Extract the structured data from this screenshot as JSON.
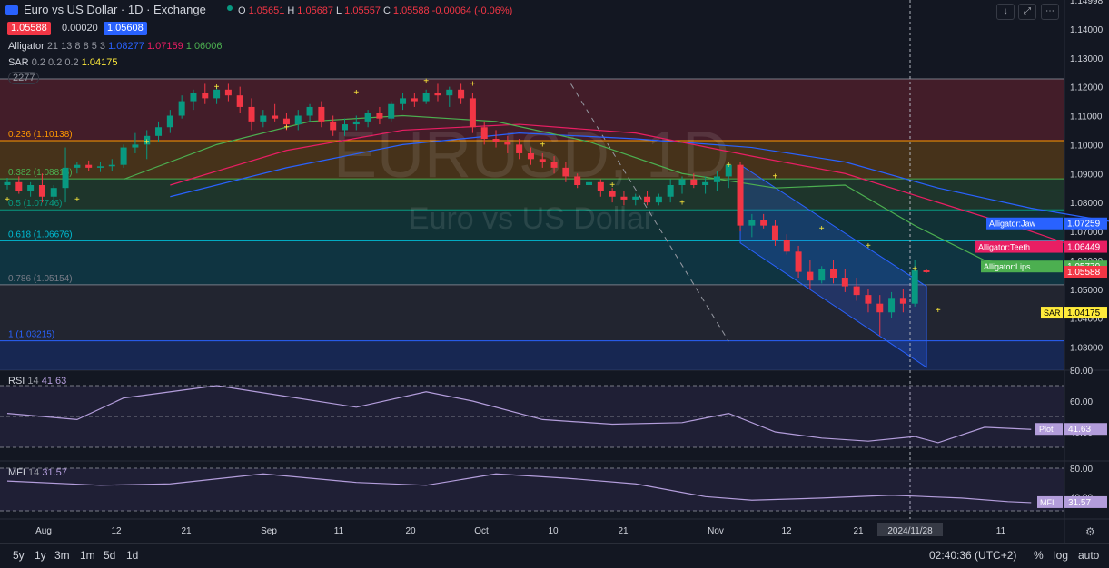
{
  "header": {
    "title": "Euro vs US Dollar · 1D · Exchange",
    "ohlc": {
      "o_label": "O",
      "o": "1.05651",
      "h_label": "H",
      "h": "1.05687",
      "l_label": "L",
      "l": "1.05557",
      "c_label": "C",
      "c": "1.05588",
      "change": "-0.00064 (-0.06%)"
    },
    "sell_price": "1.05588",
    "spread": "0.00020",
    "buy_price": "1.05608"
  },
  "indicators": {
    "alligator": {
      "name": "Alligator",
      "params": "21 13 8 8 5 3",
      "jaw": "1.08277",
      "teeth": "1.07159",
      "lips": "1.06006"
    },
    "sar": {
      "name": "SAR",
      "params": "0.2 0.2 0.2",
      "value": "1.04175"
    },
    "collapsed": "2277"
  },
  "watermark": {
    "symbol": "EURUSD, 1D",
    "name": "Euro vs US Dollar"
  },
  "colors": {
    "up": "#089981",
    "down": "#f23645",
    "jaw": "#2962ff",
    "teeth": "#e91e63",
    "lips": "#4caf50",
    "sar": "#ffeb3b",
    "rsi": "#b39ddb",
    "mfi": "#b39ddb",
    "bg": "#131722"
  },
  "price_axis": {
    "labels": [
      "1.14998",
      "1.14000",
      "1.13000",
      "1.12000",
      "1.11000",
      "1.10000",
      "1.09000",
      "1.08000",
      "1.07000",
      "1.06000",
      "1.05000",
      "1.04000",
      "1.03000"
    ]
  },
  "fib_levels": [
    {
      "label": "0.236 (1.10138)",
      "price": 1.10138
    },
    {
      "label": "0.382 (1.08815)",
      "price": 1.08815
    },
    {
      "label": "0.5 (1.07746)",
      "price": 1.07746
    },
    {
      "label": "0.618 (1.06676)",
      "price": 1.06676
    },
    {
      "label": "0.786 (1.05154)",
      "price": 1.05154
    },
    {
      "label": "1 (1.03215)",
      "price": 1.03215
    }
  ],
  "fib_top": 1.1227,
  "price_labels": [
    {
      "text": "Alligator:Jaw",
      "value": "1.07259",
      "color": "#2962ff"
    },
    {
      "text": "Alligator:Teeth",
      "value": "1.06449",
      "color": "#e91e63"
    },
    {
      "text": "Alligator:Lips",
      "value": "1.05770",
      "color": "#4caf50"
    },
    {
      "text": "",
      "value": "1.05588",
      "color": "#f23645"
    },
    {
      "text": "SAR",
      "value": "1.04175",
      "color": "#ffeb3b"
    }
  ],
  "rsi": {
    "name": "RSI",
    "period": "14",
    "value": "41.63",
    "axis": [
      "80.00",
      "60.00",
      "40.00"
    ],
    "plot_label": "Plot",
    "plot_value": "41.63"
  },
  "mfi": {
    "name": "MFI",
    "period": "14",
    "value": "31.57",
    "axis": [
      "80.00",
      "40.00"
    ],
    "plot_label": "MFI",
    "plot_value": "31.57"
  },
  "time_axis": [
    "Aug",
    "12",
    "21",
    "Sep",
    "11",
    "20",
    "Oct",
    "10",
    "21",
    "Nov",
    "12",
    "21",
    "2024/11/28",
    "11"
  ],
  "bottom_bar": {
    "timeframes": [
      "5y",
      "1y",
      "3m",
      "1m",
      "5d",
      "1d"
    ],
    "clock": "02:40:36 (UTC+2)",
    "percent": "%",
    "log": "log",
    "auto": "auto"
  },
  "chart_data": {
    "type": "candlestick",
    "title": "Euro vs US Dollar · 1D",
    "ylim": [
      1.022,
      1.15
    ],
    "candles": [
      [
        1.086,
        1.0885,
        1.0845,
        1.087
      ],
      [
        1.087,
        1.089,
        1.083,
        1.084
      ],
      [
        1.084,
        1.087,
        1.082,
        1.086
      ],
      [
        1.086,
        1.09,
        1.08,
        1.082
      ],
      [
        1.082,
        1.086,
        1.079,
        1.085
      ],
      [
        1.085,
        1.099,
        1.08,
        1.092
      ],
      [
        1.092,
        1.094,
        1.09,
        1.093
      ],
      [
        1.093,
        1.0945,
        1.091,
        1.092
      ],
      [
        1.092,
        1.094,
        1.0905,
        1.0925
      ],
      [
        1.0925,
        1.095,
        1.091,
        1.093
      ],
      [
        1.093,
        1.1,
        1.092,
        1.099
      ],
      [
        1.099,
        1.104,
        1.097,
        1.1
      ],
      [
        1.1,
        1.105,
        1.095,
        1.103
      ],
      [
        1.103,
        1.108,
        1.101,
        1.106
      ],
      [
        1.106,
        1.112,
        1.104,
        1.11
      ],
      [
        1.11,
        1.117,
        1.109,
        1.115
      ],
      [
        1.115,
        1.119,
        1.112,
        1.118
      ],
      [
        1.118,
        1.121,
        1.114,
        1.116
      ],
      [
        1.116,
        1.1202,
        1.114,
        1.119
      ],
      [
        1.119,
        1.121,
        1.115,
        1.117
      ],
      [
        1.117,
        1.12,
        1.111,
        1.113
      ],
      [
        1.113,
        1.116,
        1.105,
        1.108
      ],
      [
        1.108,
        1.112,
        1.106,
        1.11
      ],
      [
        1.11,
        1.114,
        1.108,
        1.109
      ],
      [
        1.109,
        1.111,
        1.105,
        1.107
      ],
      [
        1.107,
        1.112,
        1.105,
        1.11
      ],
      [
        1.11,
        1.114,
        1.108,
        1.113
      ],
      [
        1.113,
        1.115,
        1.106,
        1.108
      ],
      [
        1.108,
        1.11,
        1.103,
        1.105
      ],
      [
        1.105,
        1.109,
        1.103,
        1.107
      ],
      [
        1.107,
        1.11,
        1.105,
        1.108
      ],
      [
        1.108,
        1.112,
        1.106,
        1.111
      ],
      [
        1.111,
        1.113,
        1.107,
        1.109
      ],
      [
        1.109,
        1.115,
        1.108,
        1.114
      ],
      [
        1.114,
        1.118,
        1.112,
        1.116
      ],
      [
        1.116,
        1.118,
        1.113,
        1.115
      ],
      [
        1.115,
        1.119,
        1.114,
        1.118
      ],
      [
        1.118,
        1.121,
        1.115,
        1.117
      ],
      [
        1.117,
        1.12,
        1.113,
        1.119
      ],
      [
        1.119,
        1.121,
        1.114,
        1.116
      ],
      [
        1.116,
        1.118,
        1.104,
        1.106
      ],
      [
        1.106,
        1.108,
        1.1,
        1.102
      ],
      [
        1.102,
        1.105,
        1.099,
        1.101
      ],
      [
        1.101,
        1.103,
        1.097,
        1.1
      ],
      [
        1.1,
        1.102,
        1.095,
        1.097
      ],
      [
        1.097,
        1.099,
        1.093,
        1.095
      ],
      [
        1.095,
        1.097,
        1.092,
        1.094
      ],
      [
        1.094,
        1.096,
        1.09,
        1.092
      ],
      [
        1.092,
        1.094,
        1.087,
        1.089
      ],
      [
        1.089,
        1.09,
        1.085,
        1.086
      ],
      [
        1.086,
        1.089,
        1.084,
        1.087
      ],
      [
        1.087,
        1.088,
        1.082,
        1.084
      ],
      [
        1.084,
        1.085,
        1.08,
        1.082
      ],
      [
        1.082,
        1.084,
        1.079,
        1.081
      ],
      [
        1.081,
        1.083,
        1.079,
        1.082
      ],
      [
        1.082,
        1.084,
        1.079,
        1.08
      ],
      [
        1.08,
        1.083,
        1.079,
        1.082
      ],
      [
        1.082,
        1.088,
        1.08,
        1.086
      ],
      [
        1.086,
        1.089,
        1.083,
        1.088
      ],
      [
        1.088,
        1.09,
        1.085,
        1.086
      ],
      [
        1.086,
        1.089,
        1.083,
        1.087
      ],
      [
        1.087,
        1.091,
        1.084,
        1.089
      ],
      [
        1.089,
        1.094,
        1.085,
        1.093
      ],
      [
        1.093,
        1.094,
        1.07,
        1.072
      ],
      [
        1.072,
        1.076,
        1.068,
        1.074
      ],
      [
        1.074,
        1.076,
        1.071,
        1.072
      ],
      [
        1.072,
        1.074,
        1.065,
        1.067
      ],
      [
        1.067,
        1.069,
        1.062,
        1.063
      ],
      [
        1.063,
        1.065,
        1.054,
        1.056
      ],
      [
        1.056,
        1.06,
        1.05,
        1.053
      ],
      [
        1.053,
        1.058,
        1.052,
        1.057
      ],
      [
        1.057,
        1.06,
        1.052,
        1.054
      ],
      [
        1.054,
        1.057,
        1.049,
        1.051
      ],
      [
        1.051,
        1.054,
        1.046,
        1.048
      ],
      [
        1.048,
        1.05,
        1.042,
        1.045
      ],
      [
        1.045,
        1.048,
        1.034,
        1.042
      ],
      [
        1.042,
        1.049,
        1.04,
        1.047
      ],
      [
        1.047,
        1.05,
        1.042,
        1.045
      ],
      [
        1.045,
        1.06,
        1.044,
        1.0565
      ],
      [
        1.0565,
        1.0569,
        1.0556,
        1.0559
      ]
    ],
    "alligator_jaw": [
      [
        14,
        1.082
      ],
      [
        24,
        1.092
      ],
      [
        34,
        1.1
      ],
      [
        44,
        1.104
      ],
      [
        54,
        1.102
      ],
      [
        64,
        1.099
      ],
      [
        72,
        1.094
      ],
      [
        80,
        1.085
      ],
      [
        88,
        1.078
      ],
      [
        96,
        1.0726
      ]
    ],
    "alligator_teeth": [
      [
        14,
        1.086
      ],
      [
        24,
        1.098
      ],
      [
        34,
        1.105
      ],
      [
        44,
        1.107
      ],
      [
        54,
        1.104
      ],
      [
        64,
        1.096
      ],
      [
        72,
        1.09
      ],
      [
        80,
        1.08
      ],
      [
        88,
        1.07
      ],
      [
        92,
        1.0645
      ]
    ],
    "alligator_lips": [
      [
        10,
        1.088
      ],
      [
        18,
        1.1
      ],
      [
        26,
        1.108
      ],
      [
        34,
        1.11
      ],
      [
        42,
        1.108
      ],
      [
        50,
        1.101
      ],
      [
        58,
        1.09
      ],
      [
        66,
        1.085
      ],
      [
        72,
        1.086
      ],
      [
        78,
        1.072
      ],
      [
        84,
        1.06
      ],
      [
        88,
        1.0577
      ]
    ],
    "sar": [
      [
        0,
        1.08
      ],
      [
        6,
        1.08
      ],
      [
        12,
        1.1
      ],
      [
        18,
        1.119
      ],
      [
        24,
        1.105
      ],
      [
        30,
        1.117
      ],
      [
        36,
        1.121
      ],
      [
        40,
        1.12
      ],
      [
        46,
        1.099
      ],
      [
        52,
        1.085
      ],
      [
        58,
        1.079
      ],
      [
        62,
        1.092
      ],
      [
        66,
        1.088
      ],
      [
        70,
        1.07
      ],
      [
        74,
        1.064
      ],
      [
        78,
        1.056
      ],
      [
        80,
        1.0418
      ]
    ],
    "rsi": [
      [
        0,
        52
      ],
      [
        6,
        48
      ],
      [
        10,
        62
      ],
      [
        18,
        70
      ],
      [
        24,
        63
      ],
      [
        30,
        56
      ],
      [
        36,
        66
      ],
      [
        40,
        60
      ],
      [
        46,
        48
      ],
      [
        52,
        45
      ],
      [
        58,
        46
      ],
      [
        62,
        52
      ],
      [
        66,
        40
      ],
      [
        70,
        36
      ],
      [
        74,
        34
      ],
      [
        78,
        37
      ],
      [
        80,
        33
      ],
      [
        84,
        43
      ],
      [
        88,
        41.63
      ]
    ],
    "mfi": [
      [
        0,
        62
      ],
      [
        8,
        56
      ],
      [
        14,
        58
      ],
      [
        22,
        72
      ],
      [
        30,
        60
      ],
      [
        36,
        56
      ],
      [
        42,
        72
      ],
      [
        48,
        66
      ],
      [
        54,
        58
      ],
      [
        60,
        40
      ],
      [
        64,
        35
      ],
      [
        70,
        38
      ],
      [
        76,
        42
      ],
      [
        82,
        38
      ],
      [
        86,
        33
      ],
      [
        88,
        31.57
      ]
    ]
  }
}
